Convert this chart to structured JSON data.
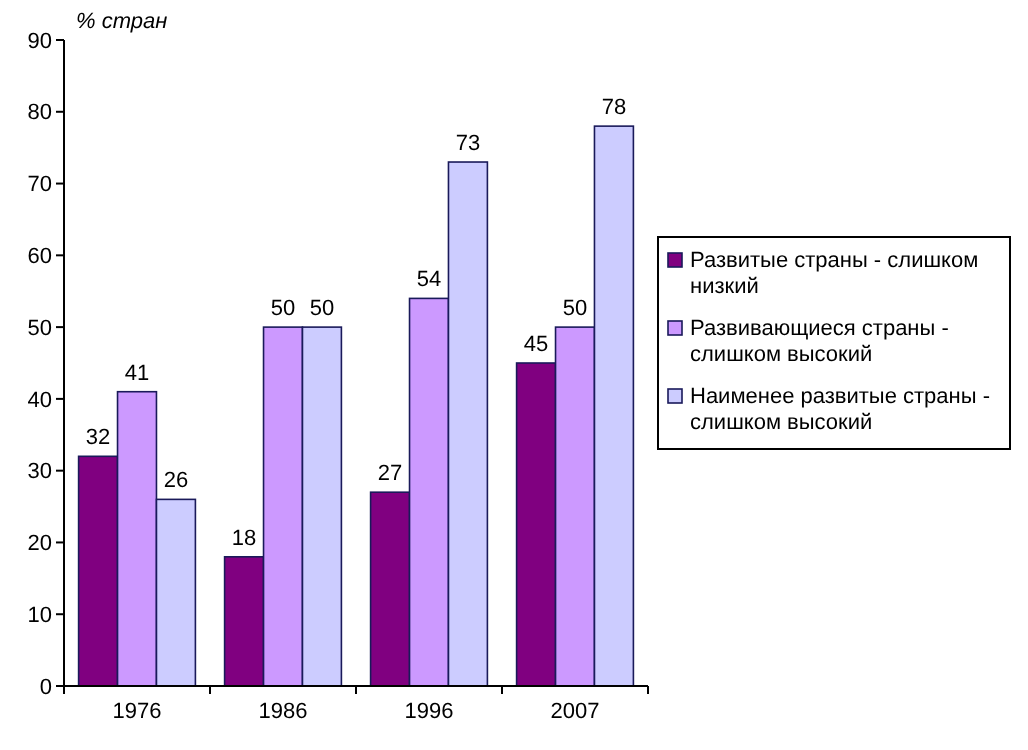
{
  "chart_data": {
    "type": "bar",
    "ylabel": "% стран",
    "categories": [
      "1976",
      "1986",
      "1996",
      "2007"
    ],
    "series": [
      {
        "name": "Развитые страны - слишком низкий",
        "color": "#800080",
        "values": [
          32,
          18,
          27,
          45
        ]
      },
      {
        "name": "Развивающиеся страны - слишком высокий",
        "color": "#cc99ff",
        "values": [
          41,
          50,
          54,
          50
        ]
      },
      {
        "name": "Наименее развитые страны - слишком высокий",
        "color": "#ccccff",
        "values": [
          26,
          50,
          73,
          78
        ]
      }
    ],
    "ylim": [
      0,
      90
    ],
    "yticks": [
      0,
      10,
      20,
      30,
      40,
      50,
      60,
      70,
      80,
      90
    ],
    "grid": false,
    "legend": "right",
    "data_labels": true
  }
}
